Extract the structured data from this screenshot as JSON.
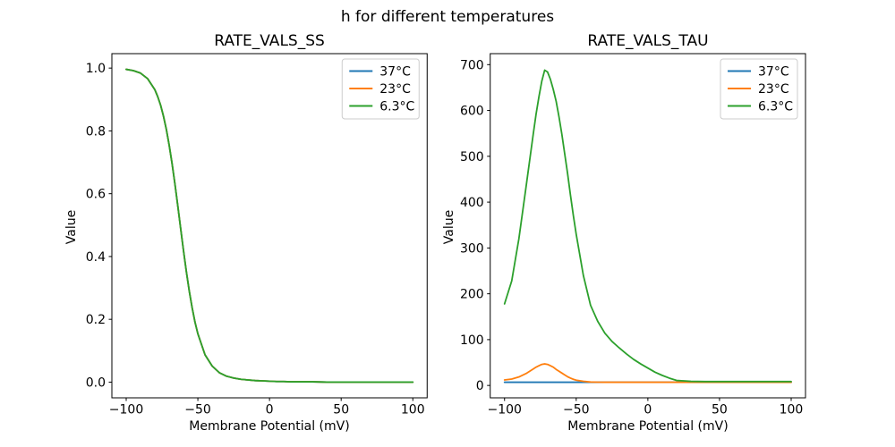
{
  "figure": {
    "title": "h for different temperatures",
    "background": "#ffffff"
  },
  "colors": {
    "series_blue": "#1f77b4",
    "series_orange": "#ff7f0e",
    "series_green": "#2ca02c",
    "axis": "#000000",
    "legend_border": "#cccccc"
  },
  "chart_data": [
    {
      "type": "line",
      "title": "RATE_VALS_SS",
      "xlabel": "Membrane Potential (mV)",
      "ylabel": "Value",
      "xlim": [
        -110,
        110
      ],
      "ylim": [
        -0.05,
        1.046
      ],
      "xticks": [
        -100,
        -50,
        0,
        50,
        100
      ],
      "xtick_labels": [
        "−100",
        "−50",
        "0",
        "50",
        "100"
      ],
      "yticks": [
        0,
        0.2,
        0.4,
        0.6,
        0.8,
        1.0
      ],
      "ytick_labels": [
        "0.0",
        "0.2",
        "0.4",
        "0.6",
        "0.8",
        "1.0"
      ],
      "legend_position": "upper right",
      "grid": false,
      "x": [
        -100,
        -95,
        -90,
        -85,
        -80,
        -78,
        -76,
        -74,
        -72,
        -70,
        -68,
        -66,
        -64,
        -62,
        -60,
        -58,
        -56,
        -54,
        -52,
        -50,
        -45,
        -40,
        -35,
        -30,
        -25,
        -20,
        -15,
        -10,
        -5,
        0,
        5,
        10,
        15,
        20,
        30,
        40,
        50,
        60,
        70,
        80,
        90,
        100
      ],
      "series": [
        {
          "name": "37°C",
          "color": "#1f77b4",
          "values": [
            0.996,
            0.992,
            0.984,
            0.966,
            0.931,
            0.909,
            0.882,
            0.847,
            0.805,
            0.754,
            0.696,
            0.631,
            0.561,
            0.489,
            0.418,
            0.351,
            0.29,
            0.237,
            0.191,
            0.154,
            0.087,
            0.051,
            0.03,
            0.019,
            0.013,
            0.009,
            0.007,
            0.005,
            0.004,
            0.003,
            0.002,
            0.002,
            0.001,
            0.001,
            0.001,
            0.0,
            0.0,
            0.0,
            0.0,
            0.0,
            0.0,
            0.0
          ]
        },
        {
          "name": "23°C",
          "color": "#ff7f0e",
          "values": [
            0.996,
            0.992,
            0.984,
            0.966,
            0.931,
            0.909,
            0.882,
            0.847,
            0.805,
            0.754,
            0.696,
            0.631,
            0.561,
            0.489,
            0.418,
            0.351,
            0.29,
            0.237,
            0.191,
            0.154,
            0.087,
            0.051,
            0.03,
            0.019,
            0.013,
            0.009,
            0.007,
            0.005,
            0.004,
            0.003,
            0.002,
            0.002,
            0.001,
            0.001,
            0.001,
            0.0,
            0.0,
            0.0,
            0.0,
            0.0,
            0.0,
            0.0
          ]
        },
        {
          "name": "6.3°C",
          "color": "#2ca02c",
          "values": [
            0.996,
            0.992,
            0.984,
            0.966,
            0.931,
            0.909,
            0.882,
            0.847,
            0.805,
            0.754,
            0.696,
            0.631,
            0.561,
            0.489,
            0.418,
            0.351,
            0.29,
            0.237,
            0.191,
            0.154,
            0.087,
            0.051,
            0.03,
            0.019,
            0.013,
            0.009,
            0.007,
            0.005,
            0.004,
            0.003,
            0.002,
            0.002,
            0.001,
            0.001,
            0.001,
            0.0,
            0.0,
            0.0,
            0.0,
            0.0,
            0.0,
            0.0
          ]
        }
      ]
    },
    {
      "type": "line",
      "title": "RATE_VALS_TAU",
      "xlabel": "Membrane Potential (mV)",
      "ylabel": "Value",
      "xlim": [
        -110,
        110
      ],
      "ylim": [
        -27,
        724
      ],
      "xticks": [
        -100,
        -50,
        0,
        50,
        100
      ],
      "xtick_labels": [
        "−100",
        "−50",
        "0",
        "50",
        "100"
      ],
      "yticks": [
        0,
        100,
        200,
        300,
        400,
        500,
        600,
        700
      ],
      "ytick_labels": [
        "0",
        "100",
        "200",
        "300",
        "400",
        "500",
        "600",
        "700"
      ],
      "legend_position": "upper right",
      "grid": false,
      "x": [
        -100,
        -95,
        -90,
        -85,
        -80,
        -78,
        -76,
        -74,
        -72,
        -70,
        -68,
        -66,
        -64,
        -62,
        -60,
        -58,
        -56,
        -54,
        -52,
        -50,
        -45,
        -40,
        -35,
        -30,
        -25,
        -20,
        -15,
        -10,
        -5,
        0,
        5,
        10,
        15,
        20,
        30,
        40,
        50,
        60,
        70,
        80,
        90,
        100
      ],
      "series": [
        {
          "name": "37°C",
          "color": "#1f77b4",
          "values": [
            7,
            7,
            7,
            7,
            7,
            7,
            7,
            7,
            7,
            7,
            7,
            7,
            7,
            7,
            7,
            7,
            7,
            7,
            7,
            7,
            7,
            7,
            7,
            7,
            7,
            7,
            7,
            7,
            7,
            7,
            7,
            7,
            7,
            7,
            7,
            7,
            7,
            7,
            7,
            7,
            7,
            7
          ]
        },
        {
          "name": "23°C",
          "color": "#ff7f0e",
          "values": [
            12,
            14,
            18.5,
            26,
            36,
            40,
            43,
            46,
            47,
            46,
            43,
            40,
            35,
            31,
            27,
            23,
            19,
            16,
            13.5,
            11.5,
            9,
            7.5,
            7.2,
            7,
            7,
            7,
            7,
            7,
            7,
            7,
            7,
            7,
            7,
            7,
            7,
            7,
            7,
            7,
            7,
            7,
            7,
            7
          ]
        },
        {
          "name": "6.3°C",
          "color": "#2ca02c",
          "values": [
            178,
            228,
            320,
            433,
            548,
            592,
            630,
            664,
            688,
            684,
            668,
            646,
            620,
            586,
            548,
            505,
            462,
            415,
            371,
            330,
            240,
            175,
            140,
            114,
            96,
            82,
            69,
            57,
            47,
            38,
            29,
            22,
            16,
            11,
            9,
            8.5,
            8.5,
            8.5,
            8.5,
            8.5,
            8.5,
            8.5
          ]
        }
      ]
    }
  ]
}
